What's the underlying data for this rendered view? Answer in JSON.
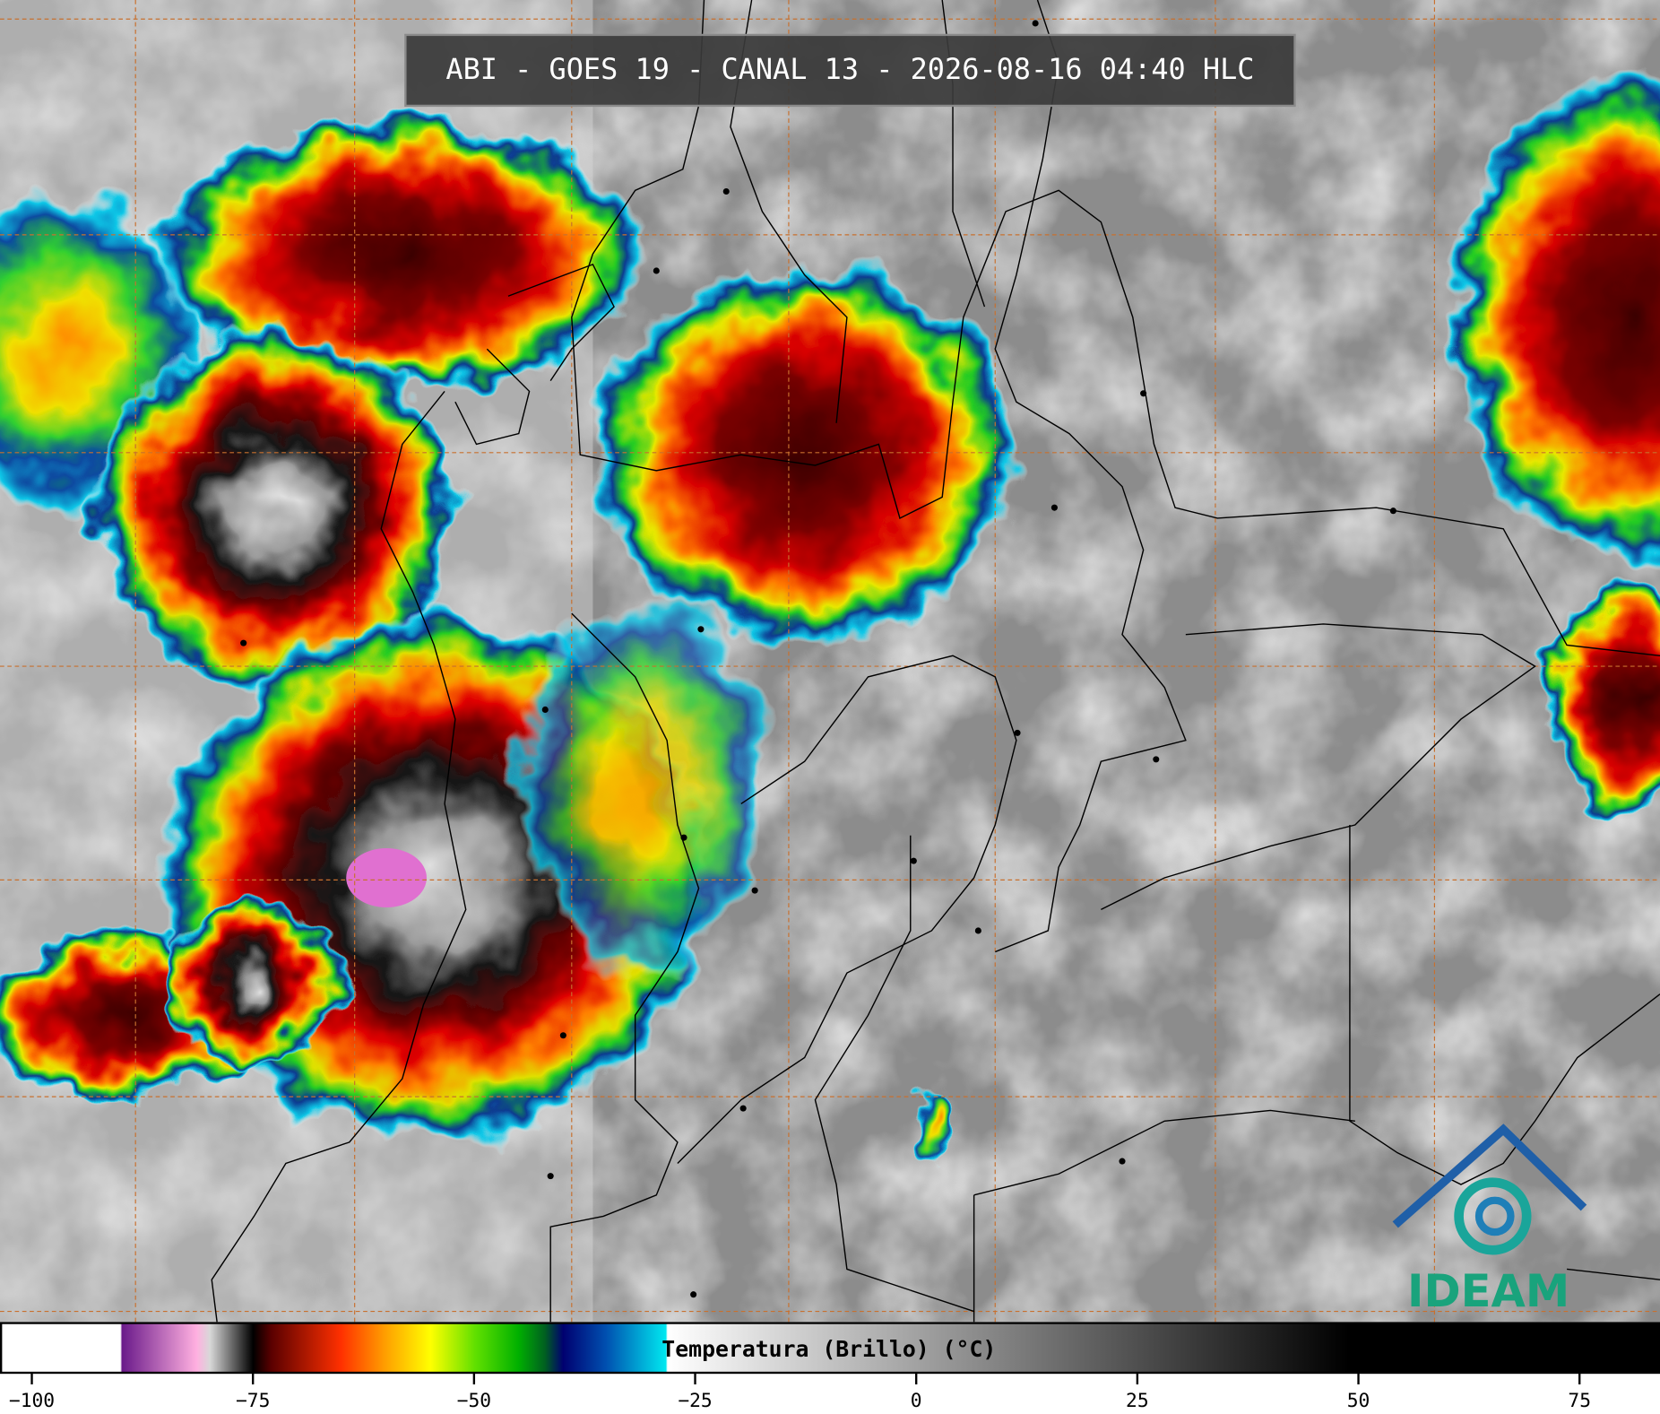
{
  "header": {
    "title": "ABI - GOES 19 - CANAL 13 - 2026-08-16 04:40 HLC"
  },
  "colorbar": {
    "label": "Temperatura (Brillo) (°C)",
    "lim": [
      -103.6,
      84.1
    ],
    "ticks": [
      {
        "value": -100,
        "label": "−100"
      },
      {
        "value": -75,
        "label": "−75"
      },
      {
        "value": -50,
        "label": "−50"
      },
      {
        "value": -25,
        "label": "−25"
      },
      0,
      25,
      50,
      75
    ]
  },
  "logo": {
    "text": "IDEAM"
  }
}
